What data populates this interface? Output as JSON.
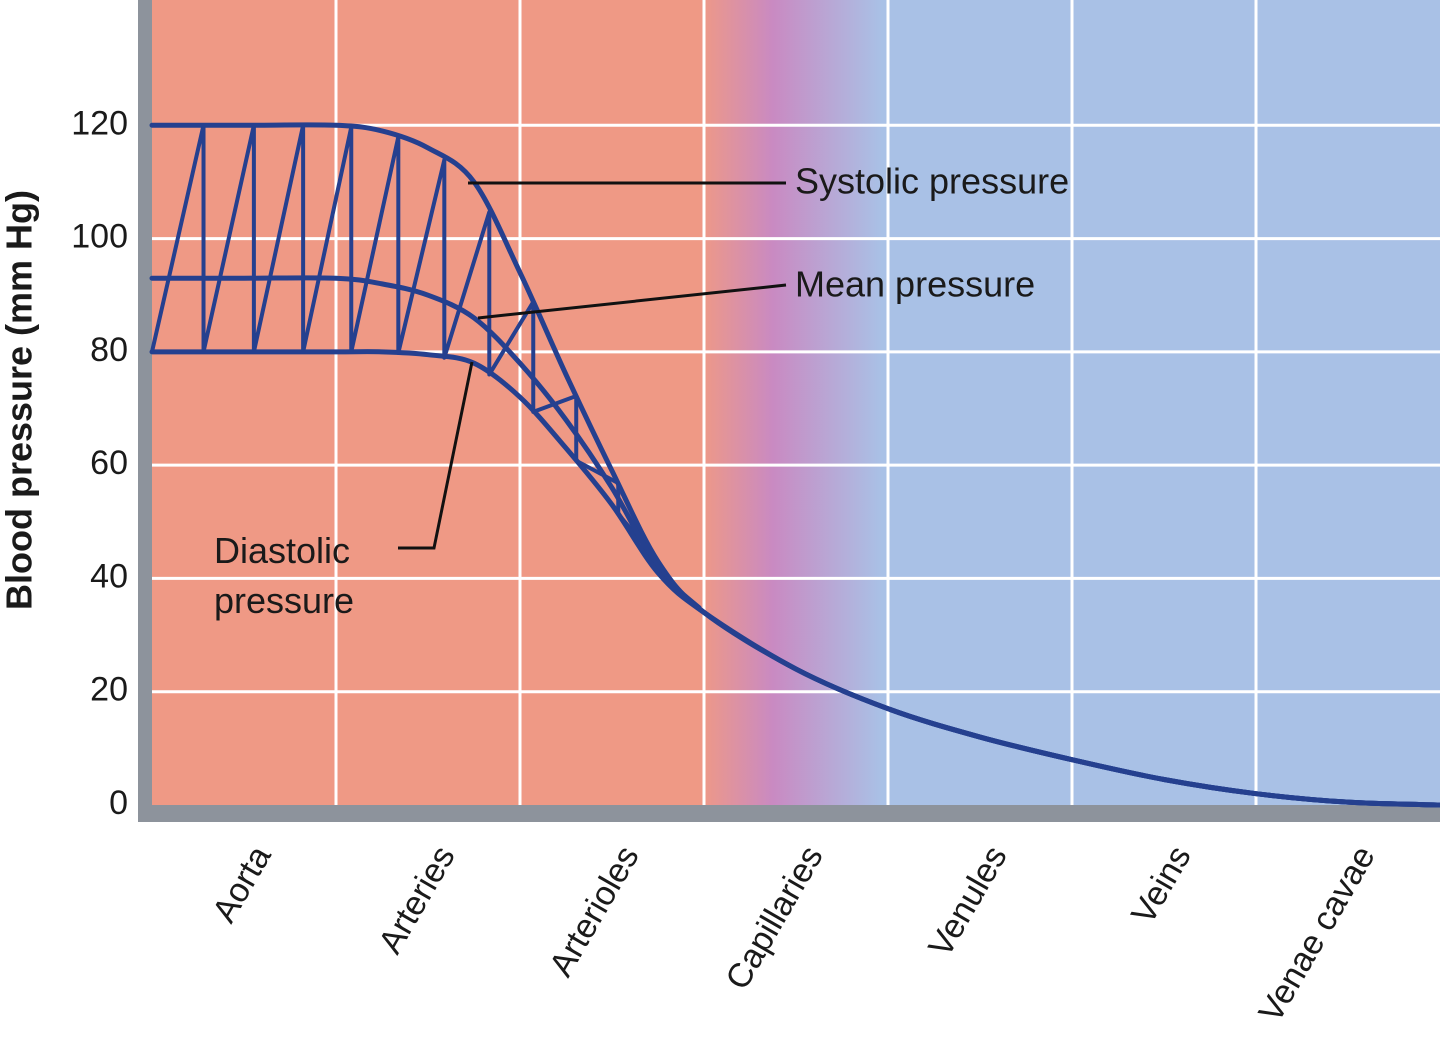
{
  "chart_data": {
    "type": "line",
    "y_label": "Blood pressure (mm Hg)",
    "categories": [
      "Aorta",
      "Arteries",
      "Arterioles",
      "Capillaries",
      "Venules",
      "Veins",
      "Venae cavae"
    ],
    "x": [
      0,
      0.5,
      1,
      1.25,
      1.5,
      1.75,
      2,
      2.25,
      2.5,
      2.75,
      3,
      3.5,
      4,
      4.5,
      5,
      5.5,
      6,
      6.5,
      7
    ],
    "xlim": [
      0,
      7
    ],
    "ylim": [
      0,
      140
    ],
    "yticks": [
      0,
      20,
      40,
      60,
      80,
      100,
      120
    ],
    "grid": true,
    "series": [
      {
        "name": "Systolic pressure",
        "color": "#25408f",
        "values": [
          120,
          120,
          120,
          119,
          116,
          110,
          94,
          76,
          59,
          43,
          34,
          24,
          17,
          12,
          8,
          4.5,
          2,
          0.5,
          0
        ]
      },
      {
        "name": "Mean pressure",
        "color": "#25408f",
        "values": [
          93,
          93,
          93,
          92,
          90,
          86,
          78,
          68,
          56,
          42,
          34,
          24,
          17,
          12,
          8,
          4.5,
          2,
          0.5,
          0
        ]
      },
      {
        "name": "Diastolic pressure",
        "color": "#25408f",
        "values": [
          80,
          80,
          80,
          80,
          79.5,
          78,
          72,
          63,
          53,
          41,
          34,
          24,
          17,
          12,
          8,
          4.5,
          2,
          0.5,
          0
        ]
      }
    ]
  }
}
